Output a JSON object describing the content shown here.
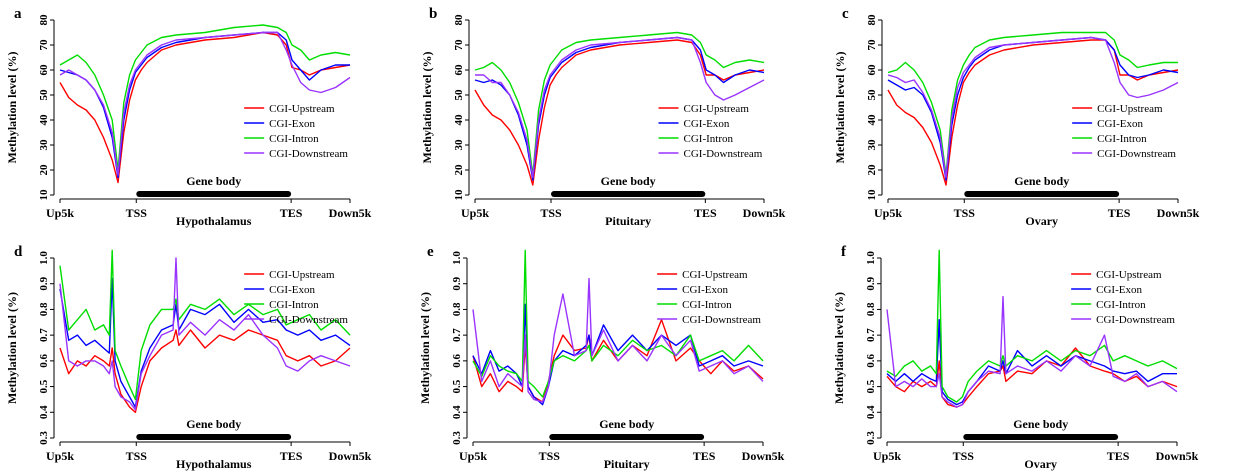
{
  "chart_data": [
    {
      "panel": "a",
      "type": "line",
      "tissue": "Hypothalamus",
      "xticks": [
        "Up5k",
        "TSS",
        "TES",
        "Down5k"
      ],
      "ylabel": "Methylation level (%)",
      "yticks": [
        10,
        20,
        30,
        40,
        50,
        60,
        70,
        80
      ],
      "ylim": [
        10,
        80
      ],
      "body_label": "Gene body",
      "x": [
        0,
        3,
        6,
        9,
        12,
        15,
        18,
        20,
        22,
        24,
        26,
        28,
        30,
        35,
        40,
        50,
        60,
        70,
        75,
        78,
        80,
        83,
        86,
        90,
        95,
        100
      ],
      "series": [
        {
          "name": "CGI-Upstream",
          "color": "#ff0000",
          "values": [
            55,
            49,
            46,
            44,
            40,
            33,
            24,
            15,
            35,
            48,
            56,
            60,
            63,
            68,
            70,
            72,
            73,
            75,
            74,
            70,
            61,
            60,
            58,
            60,
            61,
            62
          ]
        },
        {
          "name": "CGI-Exon",
          "color": "#0000ff",
          "values": [
            60,
            59,
            58,
            56,
            52,
            45,
            33,
            17,
            40,
            52,
            59,
            62,
            65,
            69,
            71,
            73,
            74,
            75,
            75,
            72,
            64,
            60,
            56,
            60,
            62,
            62
          ]
        },
        {
          "name": "CGI-Intron",
          "color": "#00dd00",
          "values": [
            62,
            64,
            66,
            63,
            58,
            50,
            40,
            20,
            47,
            58,
            64,
            67,
            70,
            73,
            74,
            75,
            77,
            78,
            77,
            75,
            70,
            68,
            64,
            66,
            67,
            66
          ]
        },
        {
          "name": "CGI-Downstream",
          "color": "#9933ff",
          "values": [
            58,
            60,
            58,
            56,
            52,
            46,
            35,
            18,
            43,
            54,
            60,
            63,
            66,
            70,
            72,
            73,
            74,
            75,
            75,
            68,
            62,
            55,
            52,
            51,
            53,
            57
          ]
        }
      ]
    },
    {
      "panel": "b",
      "type": "line",
      "tissue": "Pituitary",
      "xticks": [
        "Up5k",
        "TSS",
        "TES",
        "Down5k"
      ],
      "ylabel": "Methylation level (%)",
      "yticks": [
        10,
        20,
        30,
        40,
        50,
        60,
        70,
        80
      ],
      "ylim": [
        10,
        80
      ],
      "body_label": "Gene body",
      "x": [
        0,
        3,
        6,
        9,
        12,
        15,
        18,
        20,
        22,
        24,
        26,
        28,
        30,
        35,
        40,
        50,
        60,
        70,
        75,
        78,
        80,
        83,
        86,
        90,
        95,
        100
      ],
      "series": [
        {
          "name": "CGI-Upstream",
          "color": "#ff0000",
          "values": [
            52,
            46,
            42,
            40,
            36,
            30,
            22,
            14,
            32,
            45,
            54,
            58,
            61,
            66,
            68,
            70,
            71,
            72,
            71,
            66,
            58,
            58,
            56,
            58,
            59,
            60
          ]
        },
        {
          "name": "CGI-Exon",
          "color": "#0000ff",
          "values": [
            56,
            55,
            56,
            54,
            50,
            42,
            30,
            16,
            38,
            50,
            57,
            60,
            63,
            67,
            69,
            71,
            72,
            73,
            72,
            68,
            60,
            58,
            55,
            58,
            60,
            59
          ]
        },
        {
          "name": "CGI-Intron",
          "color": "#00dd00",
          "values": [
            60,
            61,
            63,
            60,
            55,
            47,
            36,
            18,
            44,
            56,
            62,
            65,
            68,
            71,
            72,
            73,
            74,
            75,
            74,
            71,
            66,
            64,
            61,
            63,
            64,
            63
          ]
        },
        {
          "name": "CGI-Downstream",
          "color": "#9933ff",
          "values": [
            58,
            58,
            55,
            55,
            50,
            43,
            32,
            17,
            40,
            52,
            58,
            61,
            64,
            68,
            70,
            71,
            72,
            73,
            72,
            63,
            55,
            50,
            48,
            50,
            53,
            56
          ]
        }
      ]
    },
    {
      "panel": "c",
      "type": "line",
      "tissue": "Ovary",
      "xticks": [
        "Up5k",
        "TSS",
        "TES",
        "Down5k"
      ],
      "ylabel": "Methylation level (%)",
      "yticks": [
        10,
        20,
        30,
        40,
        50,
        60,
        70,
        80
      ],
      "ylim": [
        10,
        80
      ],
      "body_label": "Gene body",
      "x": [
        0,
        3,
        6,
        9,
        12,
        15,
        18,
        20,
        22,
        24,
        26,
        28,
        30,
        35,
        40,
        50,
        60,
        70,
        75,
        78,
        80,
        83,
        86,
        90,
        95,
        100
      ],
      "series": [
        {
          "name": "CGI-Upstream",
          "color": "#ff0000",
          "values": [
            52,
            46,
            43,
            41,
            37,
            31,
            22,
            14,
            33,
            46,
            55,
            59,
            62,
            66,
            68,
            70,
            71,
            72,
            72,
            68,
            58,
            58,
            56,
            58,
            59,
            60
          ]
        },
        {
          "name": "CGI-Exon",
          "color": "#0000ff",
          "values": [
            56,
            54,
            52,
            53,
            50,
            43,
            31,
            16,
            38,
            50,
            57,
            61,
            64,
            68,
            70,
            71,
            72,
            73,
            72,
            68,
            62,
            58,
            57,
            58,
            60,
            59
          ]
        },
        {
          "name": "CGI-Intron",
          "color": "#00dd00",
          "values": [
            59,
            60,
            63,
            60,
            55,
            47,
            36,
            18,
            44,
            56,
            62,
            66,
            69,
            72,
            73,
            74,
            75,
            75,
            75,
            72,
            66,
            64,
            61,
            62,
            63,
            63
          ]
        },
        {
          "name": "CGI-Downstream",
          "color": "#9933ff",
          "values": [
            58,
            57,
            55,
            56,
            51,
            44,
            33,
            17,
            41,
            53,
            59,
            62,
            65,
            69,
            70,
            71,
            72,
            73,
            72,
            63,
            55,
            50,
            49,
            50,
            52,
            55
          ]
        }
      ]
    },
    {
      "panel": "d",
      "type": "line",
      "tissue": "Hypothalamus",
      "xticks": [
        "Up5k",
        "TSS",
        "TES",
        "Down5k"
      ],
      "ylabel": "Methylation level (%)",
      "yticks": [
        0.3,
        0.4,
        0.5,
        0.6,
        0.7,
        0.8,
        0.9,
        1.0
      ],
      "ylim": [
        0.3,
        1.0
      ],
      "body_label": "Gene body",
      "x": [
        0,
        3,
        6,
        9,
        12,
        15,
        17,
        18,
        19,
        21,
        24,
        26,
        28,
        31,
        35,
        39,
        40,
        41,
        45,
        50,
        55,
        60,
        65,
        70,
        75,
        78,
        82,
        86,
        90,
        95,
        100
      ],
      "series": [
        {
          "name": "CGI-Upstream",
          "color": "#ff0000",
          "values": [
            0.65,
            0.55,
            0.6,
            0.58,
            0.62,
            0.6,
            0.58,
            0.65,
            0.55,
            0.47,
            0.42,
            0.4,
            0.5,
            0.6,
            0.65,
            0.68,
            0.72,
            0.66,
            0.72,
            0.65,
            0.7,
            0.68,
            0.72,
            0.7,
            0.68,
            0.62,
            0.6,
            0.62,
            0.58,
            0.6,
            0.65
          ]
        },
        {
          "name": "CGI-Exon",
          "color": "#0000ff",
          "values": [
            0.88,
            0.68,
            0.7,
            0.66,
            0.68,
            0.65,
            0.63,
            0.92,
            0.6,
            0.52,
            0.46,
            0.42,
            0.56,
            0.65,
            0.72,
            0.74,
            0.82,
            0.72,
            0.8,
            0.78,
            0.82,
            0.75,
            0.8,
            0.75,
            0.76,
            0.72,
            0.7,
            0.72,
            0.68,
            0.7,
            0.66
          ]
        },
        {
          "name": "CGI-Intron",
          "color": "#00dd00",
          "values": [
            0.97,
            0.72,
            0.76,
            0.8,
            0.72,
            0.74,
            0.7,
            1.03,
            0.64,
            0.58,
            0.5,
            0.45,
            0.64,
            0.74,
            0.8,
            0.8,
            0.84,
            0.76,
            0.82,
            0.8,
            0.84,
            0.78,
            0.82,
            0.78,
            0.8,
            0.74,
            0.76,
            0.78,
            0.72,
            0.76,
            0.7
          ]
        },
        {
          "name": "CGI-Downstream",
          "color": "#9933ff",
          "values": [
            0.9,
            0.6,
            0.58,
            0.6,
            0.6,
            0.58,
            0.55,
            0.6,
            0.5,
            0.46,
            0.44,
            0.41,
            0.55,
            0.62,
            0.7,
            0.72,
            1.0,
            0.7,
            0.75,
            0.7,
            0.76,
            0.72,
            0.78,
            0.7,
            0.65,
            0.58,
            0.56,
            0.6,
            0.62,
            0.6,
            0.58
          ]
        }
      ]
    },
    {
      "panel": "e",
      "type": "line",
      "tissue": "Pituitary",
      "xticks": [
        "Up5k",
        "TSS",
        "TES",
        "Down5k"
      ],
      "ylabel": "Methylation level (%)",
      "yticks": [
        0.3,
        0.4,
        0.5,
        0.6,
        0.7,
        0.8,
        0.9,
        1.0
      ],
      "ylim": [
        0.3,
        1.0
      ],
      "body_label": "Gene body",
      "x": [
        0,
        3,
        6,
        9,
        12,
        15,
        17,
        18,
        19,
        21,
        24,
        26,
        28,
        31,
        35,
        39,
        40,
        41,
        45,
        50,
        55,
        60,
        65,
        70,
        75,
        78,
        82,
        86,
        90,
        95,
        100
      ],
      "series": [
        {
          "name": "CGI-Upstream",
          "color": "#ff0000",
          "values": [
            0.62,
            0.5,
            0.55,
            0.48,
            0.52,
            0.5,
            0.48,
            0.66,
            0.5,
            0.46,
            0.44,
            0.52,
            0.62,
            0.7,
            0.64,
            0.65,
            0.7,
            0.6,
            0.68,
            0.6,
            0.66,
            0.62,
            0.76,
            0.6,
            0.65,
            0.6,
            0.55,
            0.6,
            0.56,
            0.58,
            0.53
          ]
        },
        {
          "name": "CGI-Exon",
          "color": "#0000ff",
          "values": [
            0.62,
            0.55,
            0.64,
            0.56,
            0.58,
            0.55,
            0.5,
            0.82,
            0.5,
            0.46,
            0.43,
            0.5,
            0.6,
            0.64,
            0.62,
            0.66,
            0.7,
            0.62,
            0.74,
            0.64,
            0.7,
            0.64,
            0.7,
            0.66,
            0.7,
            0.58,
            0.6,
            0.62,
            0.58,
            0.6,
            0.58
          ]
        },
        {
          "name": "CGI-Intron",
          "color": "#00dd00",
          "values": [
            0.6,
            0.54,
            0.62,
            0.58,
            0.56,
            0.55,
            0.52,
            1.03,
            0.52,
            0.5,
            0.46,
            0.52,
            0.6,
            0.62,
            0.6,
            0.64,
            0.66,
            0.6,
            0.66,
            0.62,
            0.68,
            0.64,
            0.66,
            0.62,
            0.7,
            0.6,
            0.62,
            0.64,
            0.6,
            0.66,
            0.6
          ]
        },
        {
          "name": "CGI-Downstream",
          "color": "#9933ff",
          "values": [
            0.8,
            0.52,
            0.6,
            0.5,
            0.55,
            0.52,
            0.5,
            0.7,
            0.48,
            0.45,
            0.44,
            0.5,
            0.7,
            0.86,
            0.62,
            0.64,
            0.92,
            0.62,
            0.72,
            0.6,
            0.66,
            0.6,
            0.7,
            0.62,
            0.68,
            0.56,
            0.58,
            0.6,
            0.55,
            0.58,
            0.52
          ]
        }
      ]
    },
    {
      "panel": "f",
      "type": "line",
      "tissue": "Ovary",
      "xticks": [
        "Up5k",
        "TSS",
        "TES",
        "Down5k"
      ],
      "ylabel": "Methylation level (%)",
      "yticks": [
        0.3,
        0.4,
        0.5,
        0.6,
        0.7,
        0.8,
        0.9,
        1.0
      ],
      "ylim": [
        0.3,
        1.0
      ],
      "body_label": "Gene body",
      "x": [
        0,
        3,
        6,
        9,
        12,
        15,
        17,
        18,
        19,
        21,
        24,
        26,
        28,
        31,
        35,
        39,
        40,
        41,
        45,
        50,
        55,
        60,
        65,
        70,
        75,
        78,
        82,
        86,
        90,
        95,
        100
      ],
      "series": [
        {
          "name": "CGI-Upstream",
          "color": "#ff0000",
          "values": [
            0.54,
            0.5,
            0.48,
            0.52,
            0.5,
            0.52,
            0.5,
            0.6,
            0.46,
            0.43,
            0.42,
            0.43,
            0.46,
            0.5,
            0.55,
            0.56,
            0.58,
            0.52,
            0.56,
            0.55,
            0.6,
            0.58,
            0.65,
            0.58,
            0.56,
            0.55,
            0.52,
            0.54,
            0.5,
            0.52,
            0.5
          ]
        },
        {
          "name": "CGI-Exon",
          "color": "#0000ff",
          "values": [
            0.55,
            0.52,
            0.55,
            0.52,
            0.55,
            0.53,
            0.52,
            0.76,
            0.48,
            0.45,
            0.43,
            0.44,
            0.48,
            0.52,
            0.58,
            0.56,
            0.6,
            0.55,
            0.64,
            0.58,
            0.62,
            0.58,
            0.62,
            0.6,
            0.58,
            0.56,
            0.55,
            0.56,
            0.52,
            0.55,
            0.55
          ]
        },
        {
          "name": "CGI-Intron",
          "color": "#00dd00",
          "values": [
            0.56,
            0.54,
            0.58,
            0.6,
            0.56,
            0.58,
            0.55,
            1.03,
            0.5,
            0.46,
            0.44,
            0.46,
            0.52,
            0.56,
            0.6,
            0.58,
            0.62,
            0.58,
            0.62,
            0.6,
            0.64,
            0.6,
            0.64,
            0.62,
            0.66,
            0.6,
            0.62,
            0.6,
            0.58,
            0.6,
            0.57
          ]
        },
        {
          "name": "CGI-Downstream",
          "color": "#9933ff",
          "values": [
            0.8,
            0.5,
            0.52,
            0.5,
            0.53,
            0.5,
            0.5,
            0.55,
            0.46,
            0.44,
            0.42,
            0.43,
            0.48,
            0.52,
            0.56,
            0.55,
            0.85,
            0.55,
            0.58,
            0.56,
            0.6,
            0.56,
            0.62,
            0.58,
            0.7,
            0.54,
            0.52,
            0.55,
            0.5,
            0.52,
            0.48
          ]
        }
      ]
    }
  ]
}
